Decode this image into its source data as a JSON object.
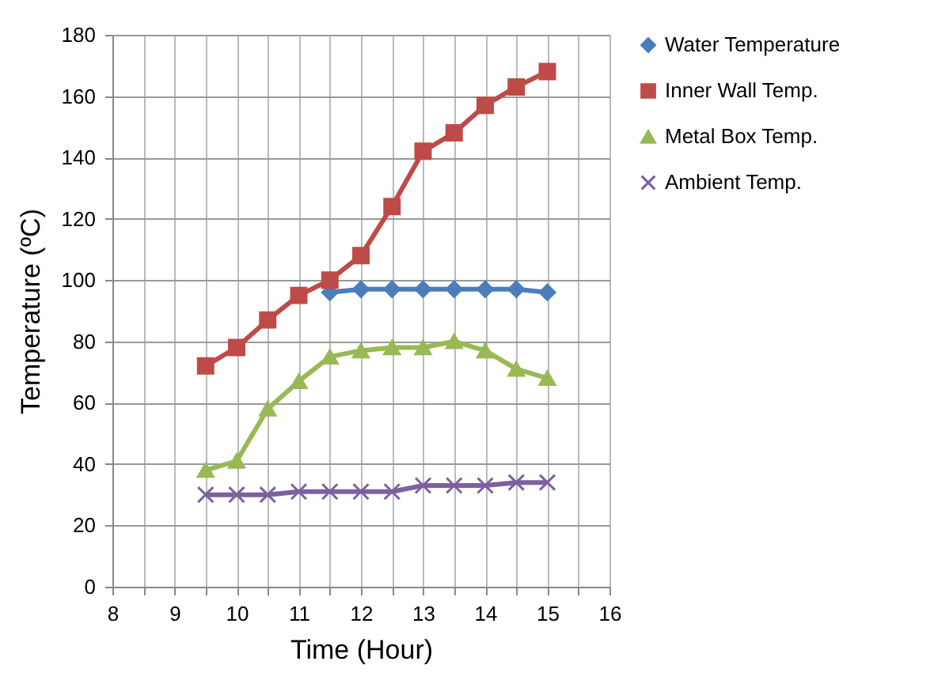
{
  "chart_data": {
    "type": "line",
    "xlabel": "Time (Hour)",
    "ylabel": "Temperature (ºC)",
    "x": [
      9.5,
      10,
      10.5,
      11,
      11.5,
      12,
      12.5,
      13,
      13.5,
      14,
      14.5,
      15
    ],
    "series": [
      {
        "name": "Water Temperature",
        "color": "#4a7ebb",
        "marker": "diamond",
        "values": [
          null,
          null,
          null,
          null,
          96,
          97,
          97,
          97,
          97,
          97,
          97,
          96
        ]
      },
      {
        "name": "Inner Wall Temp.",
        "color": "#be4b48",
        "marker": "square",
        "values": [
          72,
          78,
          87,
          95,
          100,
          108,
          124,
          142,
          148,
          157,
          163,
          168
        ]
      },
      {
        "name": "Metal Box Temp.",
        "color": "#98b954",
        "marker": "triangle",
        "values": [
          38,
          41,
          58,
          67,
          75,
          77,
          78,
          78,
          80,
          77,
          71,
          68
        ]
      },
      {
        "name": "Ambient Temp.",
        "color": "#7d60a0",
        "marker": "cross",
        "values": [
          30,
          30,
          30,
          31,
          31,
          31,
          31,
          33,
          33,
          33,
          34,
          34
        ]
      }
    ],
    "xlim": [
      8,
      16
    ],
    "xticks": [
      8,
      {
        "value": 8.5,
        "label": null
      },
      9,
      {
        "value": 9.5,
        "label": null
      },
      10,
      {
        "value": 10.5,
        "label": null
      },
      11,
      {
        "value": 11.5,
        "label": null
      },
      12,
      {
        "value": 12.5,
        "label": null
      },
      13,
      {
        "value": 13.5,
        "label": null
      },
      14,
      {
        "value": 14.5,
        "label": null
      },
      15,
      {
        "value": 15.5,
        "label": null
      },
      16
    ],
    "ylim": [
      0,
      180
    ],
    "yticks": [
      0,
      20,
      40,
      60,
      80,
      100,
      120,
      140,
      160,
      180
    ],
    "grid": true,
    "legend": "right"
  }
}
